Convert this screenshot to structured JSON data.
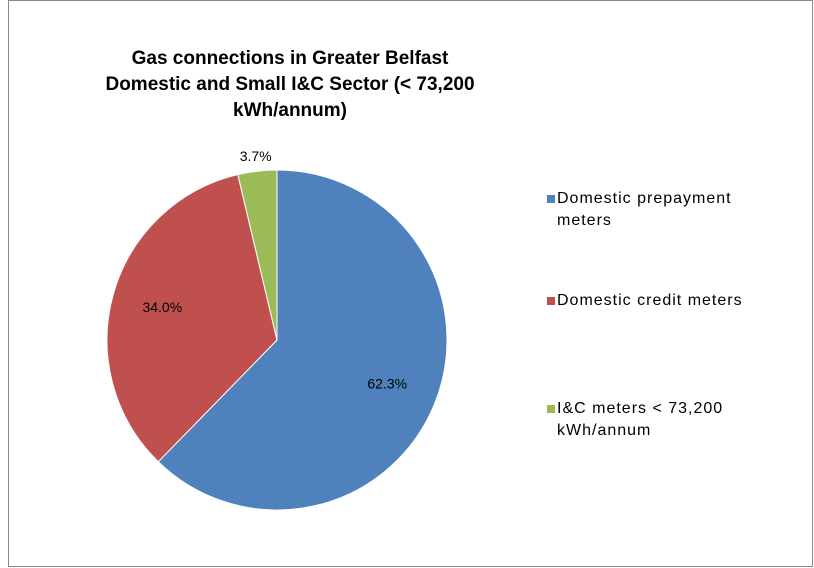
{
  "chart_data": {
    "type": "pie",
    "title": [
      "Gas connections in Greater Belfast",
      "Domestic and Small I&C Sector (< 73,200",
      "kWh/annum)"
    ],
    "categories": [
      "Domestic prepayment meters",
      "Domestic credit meters",
      "I&C meters < 73,200 kWh/annum"
    ],
    "values": [
      62.3,
      34.0,
      3.7
    ],
    "value_labels": [
      "62.3%",
      "34.0%",
      "3.7%"
    ],
    "colors": [
      "#4f81bd",
      "#c0504d",
      "#9bbb59"
    ],
    "legend": "right"
  }
}
